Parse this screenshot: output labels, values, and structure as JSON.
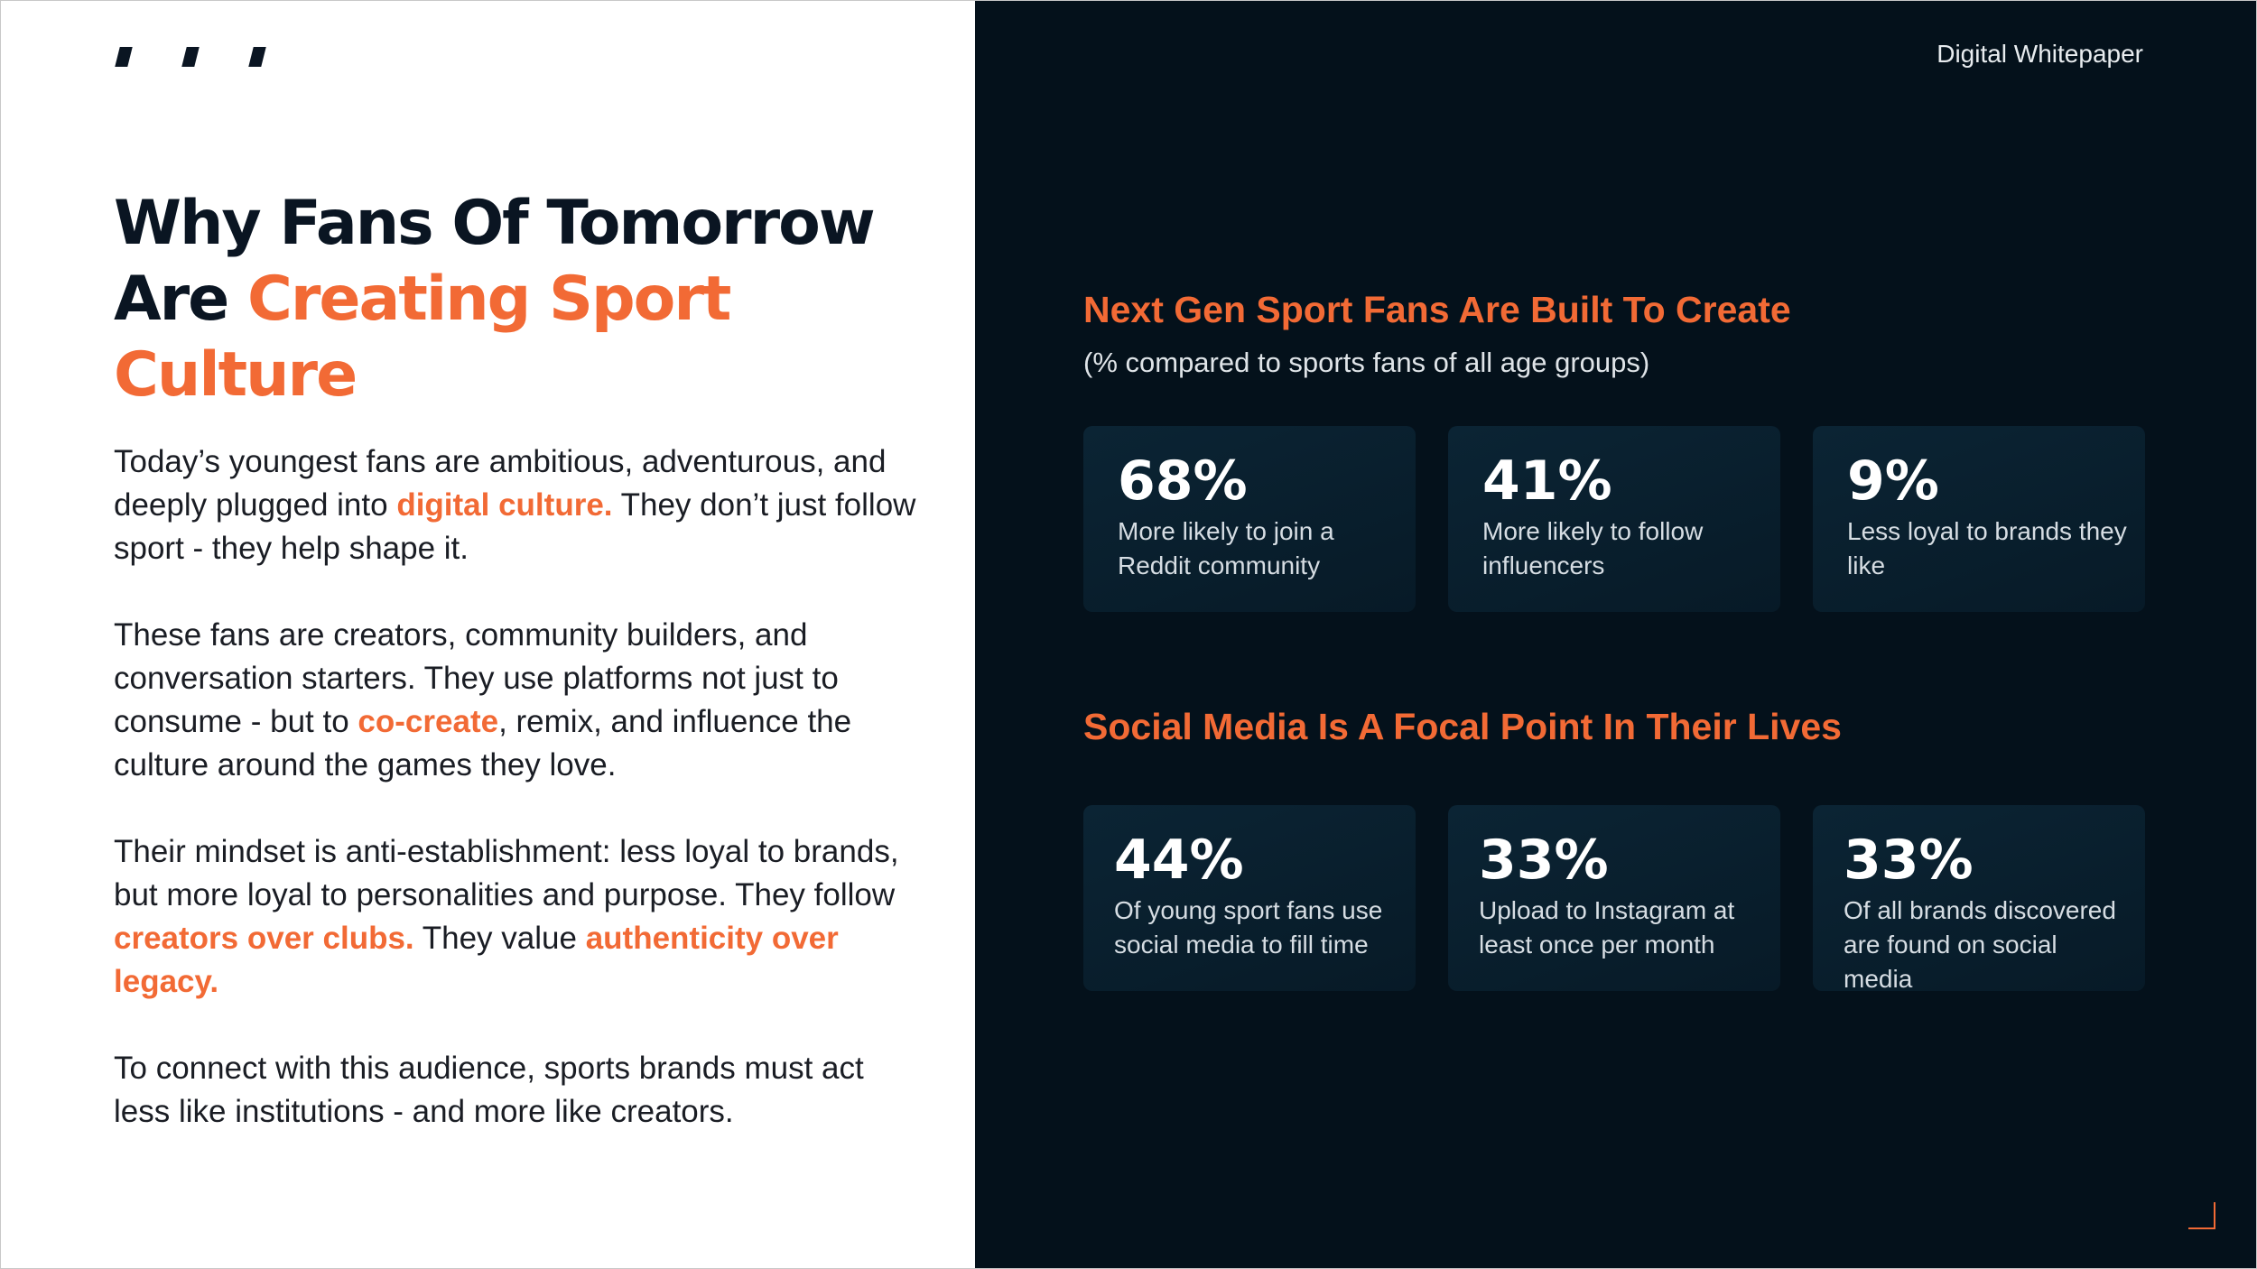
{
  "header": {
    "doc_label": "Digital Whitepaper"
  },
  "headline": {
    "part1": "Why Fans Of Tomorrow Are ",
    "highlight": "Creating Sport Culture"
  },
  "body": {
    "p1": {
      "a": "Today’s youngest fans are ambitious, adventurous, and deeply plugged into ",
      "highlight": "digital culture.",
      "b": " They don’t just follow sport - they help shape it."
    },
    "p2": {
      "a": "These fans are creators, community builders, and conversation starters. They use platforms not just to consume - but to ",
      "highlight": "co-create",
      "b": ", remix, and influence the culture around the games they love."
    },
    "p3": {
      "a": "Their mindset is anti-establishment: less loyal to brands, but more loyal to personalities and purpose. They follow ",
      "highlight1": "creators over clubs.",
      "b": " They value ",
      "highlight2": "authenticity over legacy."
    },
    "p4": "To connect with this audience, sports brands must act less like institutions - and more like creators."
  },
  "section1": {
    "title": "Next Gen Sport Fans Are Built To Create",
    "subtitle": "(% compared to sports fans of all age groups)",
    "stats": [
      {
        "value": "68%",
        "label": "More likely to join a Reddit community"
      },
      {
        "value": "41%",
        "label": "More likely to follow influencers"
      },
      {
        "value": "9%",
        "label": "Less loyal to brands they like"
      }
    ]
  },
  "section2": {
    "title": "Social Media Is A Focal Point In Their Lives",
    "stats": [
      {
        "value": "44%",
        "label": "Of young sport fans use social media to fill time"
      },
      {
        "value": "33%",
        "label": "Upload to Instagram at least once per month"
      },
      {
        "value": "33%",
        "label": "Of all brands discovered are found on social media"
      }
    ]
  },
  "colors": {
    "accent": "#f26a35",
    "dark_panel": "#04111b",
    "card": "#0b2434",
    "text_dark": "#0a1522"
  },
  "icons": {
    "logo": "quote-marks-logo",
    "corner": "corner-bracket-icon"
  }
}
